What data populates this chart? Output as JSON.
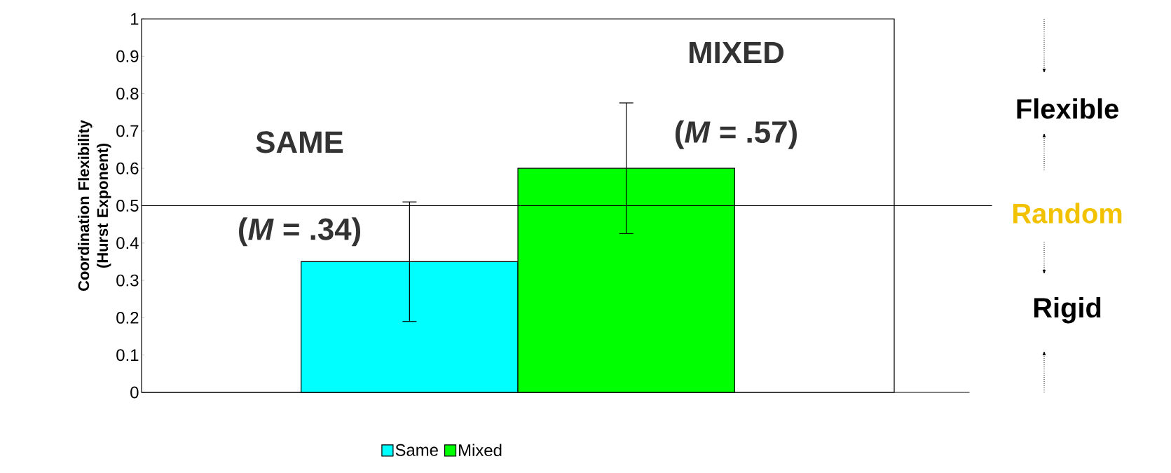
{
  "chart_data": {
    "type": "bar",
    "ylabel": "Coordination Flexibility (Hurst Exponent)",
    "categories": [
      null
    ],
    "series": [
      {
        "name": "Same",
        "color": "#00ffff",
        "values": [
          0.35
        ],
        "errors": [
          [
            0.19,
            0.51
          ]
        ]
      },
      {
        "name": "Mixed",
        "color": "#00ff00",
        "values": [
          0.6
        ],
        "errors": [
          [
            0.425,
            0.775
          ]
        ]
      }
    ],
    "ylim": [
      0,
      1
    ],
    "yticks": [
      0,
      0.1,
      0.2,
      0.3,
      0.4,
      0.5,
      0.6,
      0.7,
      0.8,
      0.9,
      1
    ],
    "ref_lines": [
      {
        "axis": "y",
        "value": 0.5,
        "label": "Random",
        "color": "#000000"
      }
    ],
    "annotations": [
      "SAME",
      "(*M* = .34)",
      "MIXED",
      "(*M* = .57)",
      "Flexible",
      "Rigid"
    ],
    "legend": "bottom",
    "grid": false
  }
}
